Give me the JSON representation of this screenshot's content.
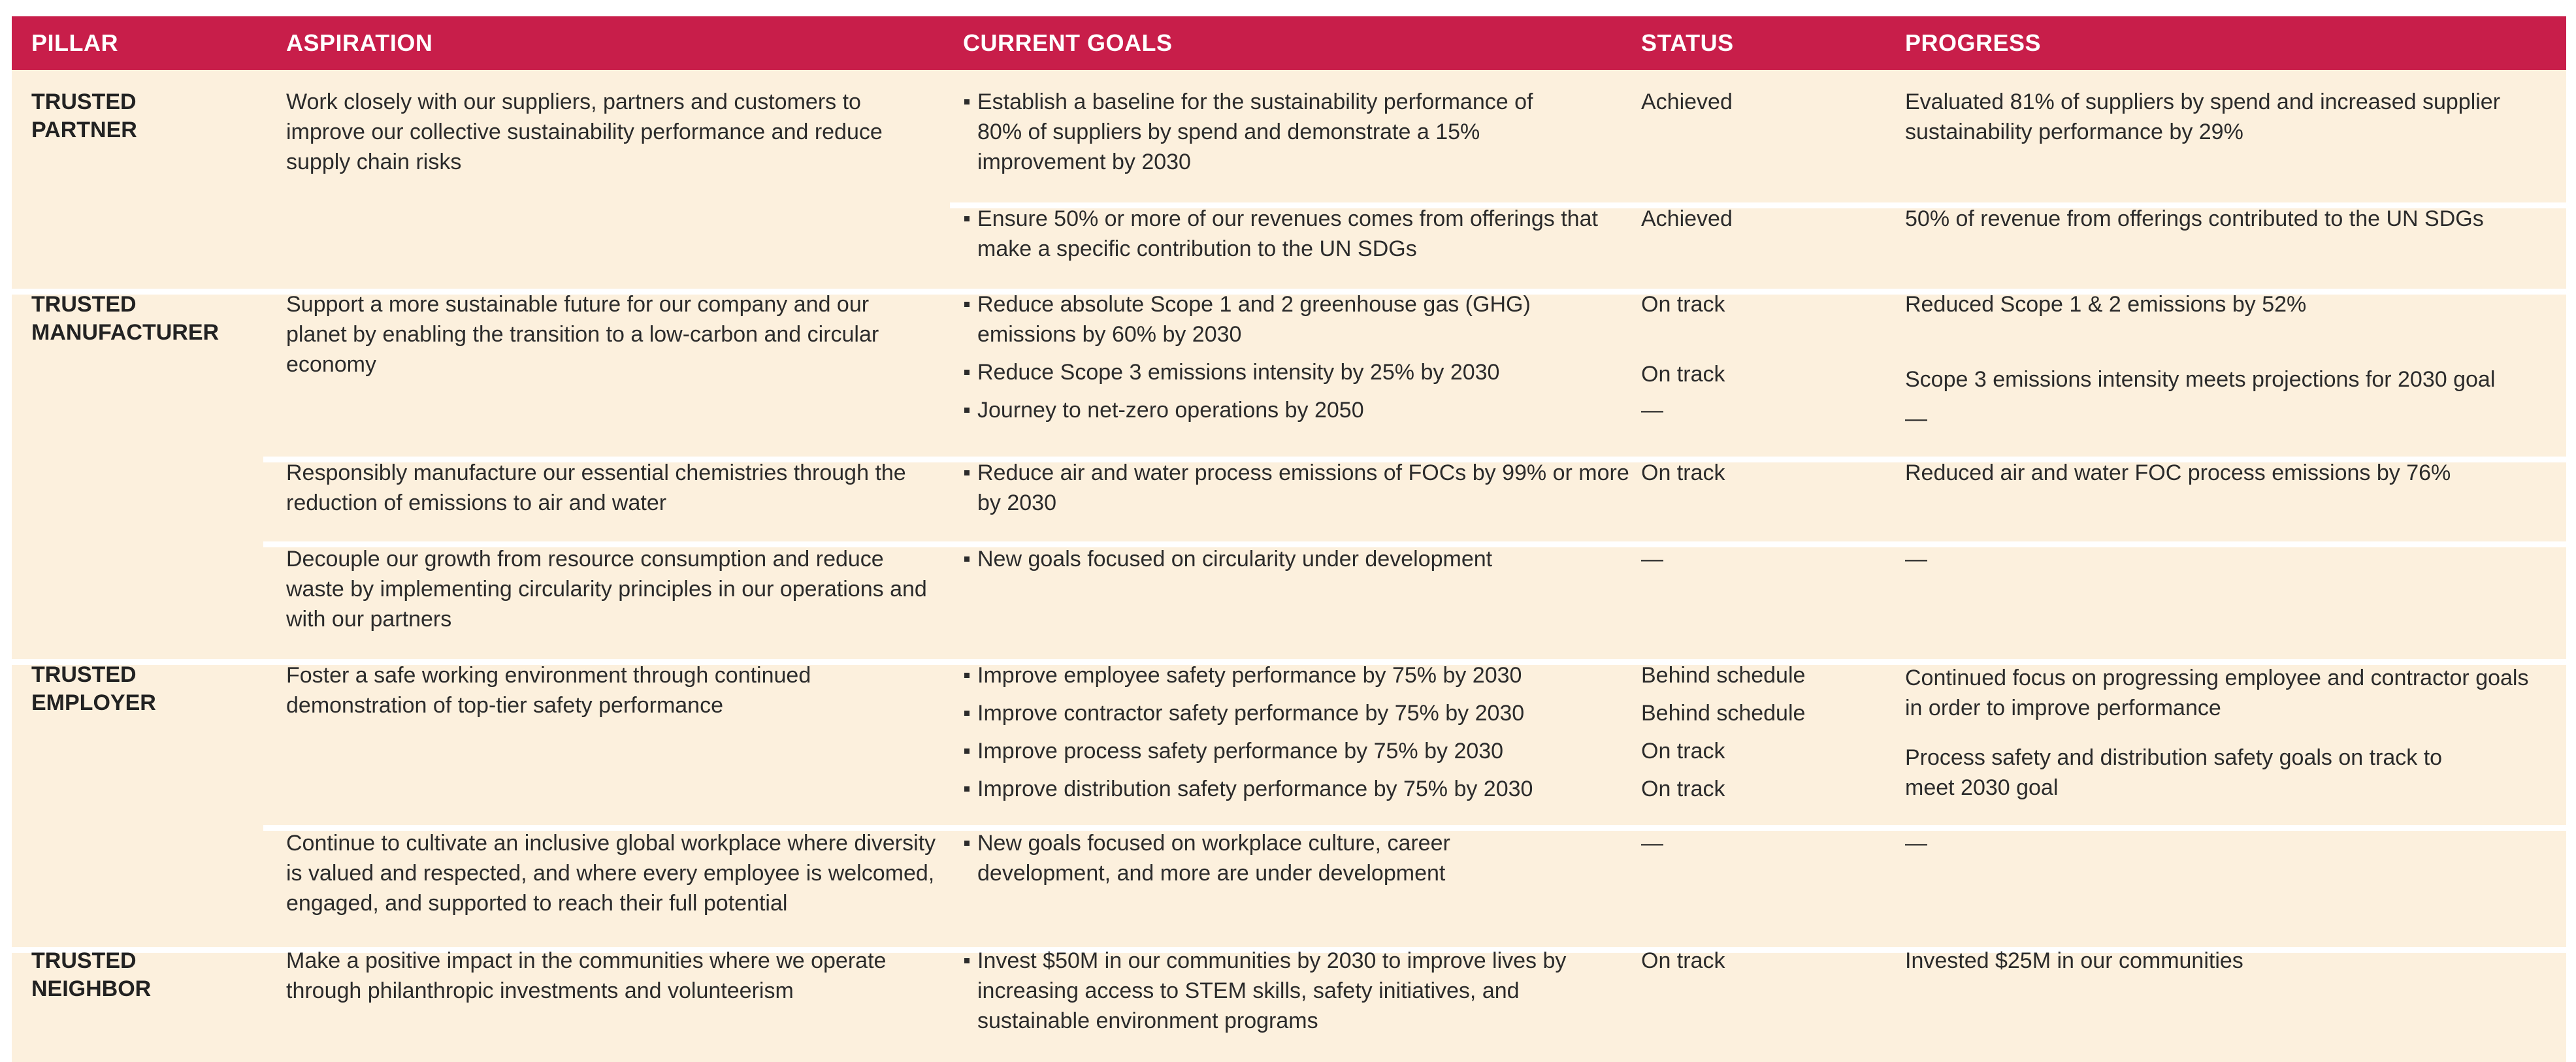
{
  "headers": {
    "pillar": "PILLAR",
    "aspiration": "ASPIRATION",
    "current_goals": "CURRENT GOALS",
    "status": "STATUS",
    "progress": "PROGRESS"
  },
  "colors": {
    "header_bg": "#c81e4a",
    "row_bg": "#fcf0dd",
    "separator": "#ffffff"
  },
  "pillars": {
    "partner": {
      "line1": "TRUSTED",
      "line2": "PARTNER"
    },
    "manufacturer": {
      "line1": "TRUSTED",
      "line2": "MANUFACTURER"
    },
    "employer": {
      "line1": "TRUSTED",
      "line2": "EMPLOYER"
    },
    "neighbor": {
      "line1": "TRUSTED",
      "line2": "NEIGHBOR"
    }
  },
  "rows": {
    "partner_a": {
      "aspiration": "Work closely with our suppliers, partners and customers to improve our collective sustainability performance and reduce supply chain risks",
      "goals": [
        "Establish a baseline for the sustainability performance of 80% of suppliers by spend and demonstrate a 15% improvement by 2030"
      ],
      "status": [
        "Achieved"
      ],
      "progress": [
        "Evaluated 81% of suppliers by spend and increased supplier sustainability performance by 29%"
      ]
    },
    "partner_b": {
      "goals": [
        "Ensure 50% or more of our revenues comes from offerings that make a specific contribution to the UN SDGs"
      ],
      "status": [
        "Achieved"
      ],
      "progress": [
        "50% of revenue from offerings contributed to the UN SDGs"
      ]
    },
    "manufacturer_a": {
      "aspiration": "Support a more sustainable future for our company and our planet by enabling the transition to a low-carbon and circular economy",
      "goals": [
        "Reduce absolute Scope 1 and 2 greenhouse gas (GHG) emissions by 60% by 2030",
        "Reduce Scope 3 emissions intensity by 25% by 2030",
        "Journey to net-zero operations by 2050"
      ],
      "status": [
        "On track",
        "On track",
        "—"
      ],
      "progress": [
        "Reduced Scope 1 & 2 emissions by 52%",
        "Scope 3 emissions intensity meets projections for 2030 goal",
        "—"
      ]
    },
    "manufacturer_b": {
      "aspiration": "Responsibly manufacture our essential chemistries through the reduction of emissions to air and water",
      "goals": [
        "Reduce air and water process emissions of FOCs by 99% or more by 2030"
      ],
      "status": [
        "On track"
      ],
      "progress": [
        "Reduced air and water FOC process emissions by 76%"
      ]
    },
    "manufacturer_c": {
      "aspiration": "Decouple our growth from resource consumption and reduce waste by implementing circularity principles in our operations and with our partners",
      "goals": [
        "New goals focused on circularity under development"
      ],
      "status": [
        "—"
      ],
      "progress": [
        "—"
      ]
    },
    "employer_a": {
      "aspiration": "Foster a safe working environment through continued demonstration of top-tier safety performance",
      "goals": [
        "Improve employee safety performance by 75% by 2030",
        "Improve contractor safety performance by 75% by 2030",
        "Improve process safety performance by 75% by 2030",
        "Improve distribution safety performance by 75% by 2030"
      ],
      "status": [
        "Behind schedule",
        "Behind schedule",
        "On track",
        "On track"
      ],
      "progress": [
        "Continued focus on progressing employee and contractor goals in order to improve performance",
        "Process safety and distribution safety goals on track to meet 2030 goal"
      ]
    },
    "employer_b": {
      "aspiration": "Continue to cultivate an inclusive global workplace where diversity is valued and respected, and where every employee is welcomed, engaged, and supported to reach their full potential",
      "goals": [
        "New goals focused on workplace culture, career development, and more are under development"
      ],
      "status": [
        "—"
      ],
      "progress": [
        "—"
      ]
    },
    "neighbor_a": {
      "aspiration": "Make a positive impact in the communities where we operate through philanthropic investments and volunteerism",
      "goals": [
        "Invest $50M in our communities by 2030 to improve lives by increasing access to STEM skills, safety initiatives, and sustainable environment programs"
      ],
      "status": [
        "On track"
      ],
      "progress": [
        "Invested $25M in our communities"
      ]
    }
  }
}
